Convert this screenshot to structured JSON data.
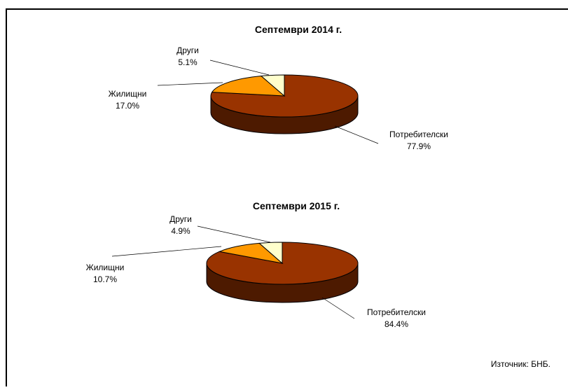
{
  "chart_data": [
    {
      "type": "pie3d",
      "title": "Септември 2014 г.",
      "categories": [
        "Потребителски",
        "Жилищни",
        "Други"
      ],
      "values": [
        77.9,
        17.0,
        5.1
      ],
      "value_labels": [
        "77.9%",
        "17.0%",
        "5.1%"
      ],
      "colors": [
        "#993300",
        "#ff9900",
        "#ffffcc"
      ]
    },
    {
      "type": "pie3d",
      "title": "Септември 2015 г.",
      "categories": [
        "Потребителски",
        "Жилищни",
        "Други"
      ],
      "values": [
        84.4,
        10.7,
        4.9
      ],
      "value_labels": [
        "84.4%",
        "10.7%",
        "4.9%"
      ],
      "colors": [
        "#993300",
        "#ff9900",
        "#ffffcc"
      ]
    }
  ],
  "source": "Източник: БНБ."
}
